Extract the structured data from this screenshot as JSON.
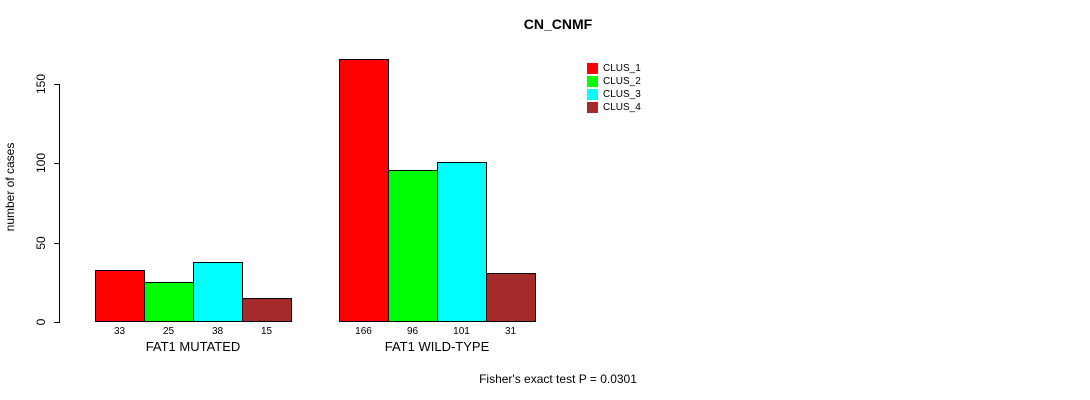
{
  "chart_data": {
    "type": "bar",
    "title": "CN_CNMF",
    "ylabel": "number of cases",
    "xlabel": "",
    "ylim": [
      0,
      175
    ],
    "yticks": [
      0,
      50,
      100,
      150
    ],
    "grid": false,
    "legend_position": "top-right",
    "categories": [
      "FAT1 MUTATED",
      "FAT1 WILD-TYPE"
    ],
    "series": [
      {
        "name": "CLUS_1",
        "color": "#FF0000",
        "values": [
          33,
          166
        ]
      },
      {
        "name": "CLUS_2",
        "color": "#00FF00",
        "values": [
          25,
          96
        ]
      },
      {
        "name": "CLUS_3",
        "color": "#00FFFF",
        "values": [
          38,
          101
        ]
      },
      {
        "name": "CLUS_4",
        "color": "#A52A2A",
        "values": [
          15,
          31
        ]
      }
    ],
    "bar_value_labels": [
      [
        "33",
        "25",
        "38",
        "15"
      ],
      [
        "166",
        "96",
        "101",
        "31"
      ]
    ],
    "annotation": "Fisher's exact test P = 0.0301",
    "colors": {
      "background": "#FFFFFF",
      "axis": "#000000",
      "text": "#000000"
    }
  }
}
